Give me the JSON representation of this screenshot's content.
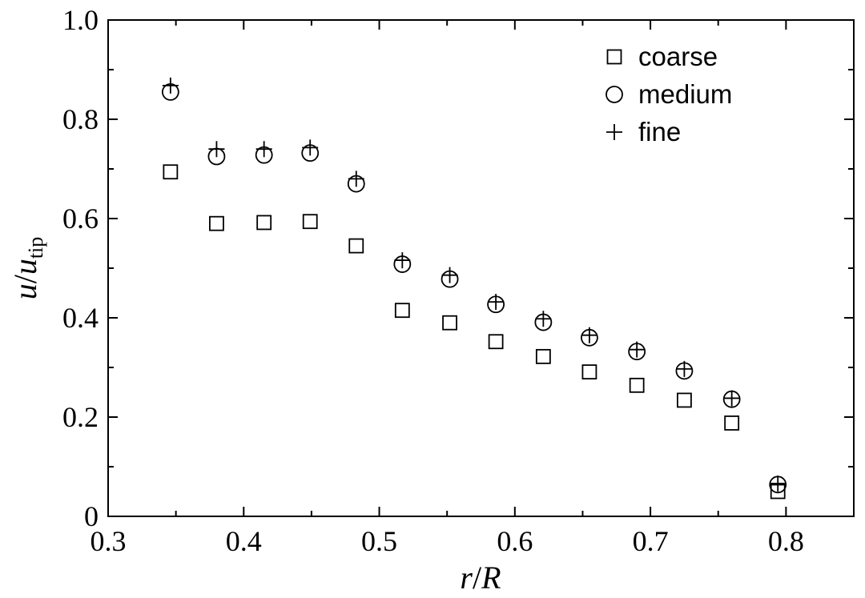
{
  "chart_data": {
    "type": "scatter",
    "xlabel": {
      "main": "r",
      "sep": "/",
      "second": "R"
    },
    "ylabel": {
      "main": "u",
      "sep": "/",
      "second": "u",
      "sub": "tip"
    },
    "xlim": [
      0.3,
      0.85
    ],
    "ylim": [
      0,
      1.0
    ],
    "xticks": [
      "0.3",
      "0.4",
      "0.5",
      "0.6",
      "0.7",
      "0.8"
    ],
    "yticks": [
      "0",
      "0.2",
      "0.4",
      "0.6",
      "0.8",
      "1.0"
    ],
    "legend_position": "top-right",
    "grid": false,
    "series": [
      {
        "name": "coarse",
        "marker": "square",
        "x": [
          0.346,
          0.38,
          0.415,
          0.449,
          0.483,
          0.517,
          0.552,
          0.586,
          0.621,
          0.655,
          0.69,
          0.725,
          0.76,
          0.794
        ],
        "y": [
          0.694,
          0.59,
          0.592,
          0.594,
          0.545,
          0.415,
          0.39,
          0.352,
          0.322,
          0.291,
          0.264,
          0.234,
          0.188,
          0.05
        ]
      },
      {
        "name": "medium",
        "marker": "circle",
        "x": [
          0.346,
          0.38,
          0.415,
          0.449,
          0.483,
          0.517,
          0.552,
          0.586,
          0.621,
          0.655,
          0.69,
          0.725,
          0.76,
          0.794
        ],
        "y": [
          0.855,
          0.725,
          0.728,
          0.732,
          0.67,
          0.508,
          0.478,
          0.427,
          0.391,
          0.36,
          0.332,
          0.293,
          0.236,
          0.064
        ]
      },
      {
        "name": "fine",
        "marker": "plus",
        "x": [
          0.346,
          0.38,
          0.415,
          0.449,
          0.483,
          0.517,
          0.552,
          0.586,
          0.621,
          0.655,
          0.69,
          0.725,
          0.76,
          0.794
        ],
        "y": [
          0.868,
          0.74,
          0.74,
          0.743,
          0.68,
          0.516,
          0.486,
          0.432,
          0.398,
          0.365,
          0.336,
          0.297,
          0.238,
          0.066
        ]
      }
    ]
  }
}
